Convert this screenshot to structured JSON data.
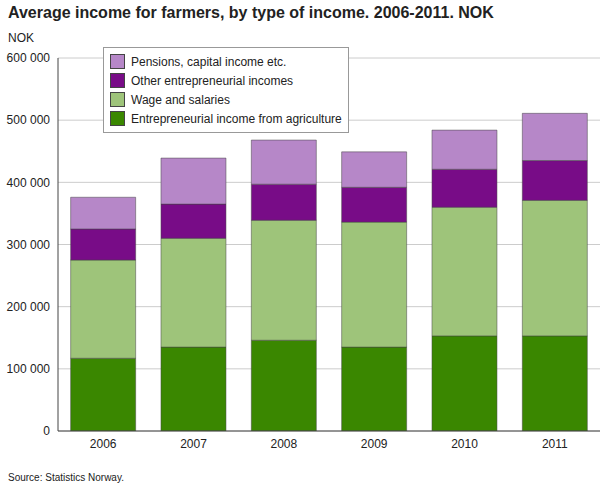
{
  "chart_data": {
    "type": "bar",
    "title": "Average income for farmers, by type of income. 2006-2011. NOK",
    "y_label": "NOK",
    "source": "Source: Statistics Norway.",
    "categories": [
      "2006",
      "2007",
      "2008",
      "2009",
      "2010",
      "2011"
    ],
    "series": [
      {
        "name": "Entrepreneurial income from agriculture",
        "color": "#3a8700",
        "values": [
          117000,
          135000,
          146000,
          135000,
          153000,
          153000
        ]
      },
      {
        "name": "Wage and salaries",
        "color": "#9ec47a",
        "values": [
          158000,
          175000,
          193000,
          201000,
          207000,
          218000
        ]
      },
      {
        "name": "Other entrepreneurial incomes",
        "color": "#780c87",
        "values": [
          50000,
          55000,
          58000,
          56000,
          61000,
          64000
        ]
      },
      {
        "name": "Pensions, capital income etc.",
        "color": "#b687c8",
        "values": [
          51000,
          74000,
          71000,
          57000,
          63000,
          76000
        ]
      }
    ],
    "ylim": [
      0,
      600000
    ],
    "yticks": [
      0,
      {
        "value": 100000,
        "label": "100 000"
      },
      {
        "value": 200000,
        "label": "200 000"
      },
      {
        "value": 300000,
        "label": "300 000"
      },
      {
        "value": 400000,
        "label": "400 000"
      },
      {
        "value": 500000,
        "label": "500 000"
      },
      {
        "value": 600000,
        "label": "600 000"
      }
    ],
    "stacked": true,
    "grid": true,
    "legend": "top-left"
  }
}
